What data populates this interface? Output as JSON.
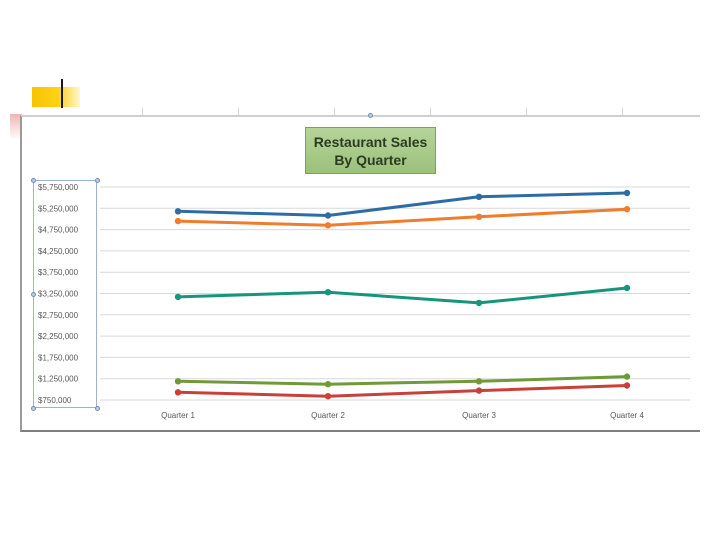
{
  "chart_data": {
    "type": "line",
    "title": "Restaurant Sales By Quarter",
    "title_lines": [
      "Restaurant Sales",
      "By Quarter"
    ],
    "categories": [
      "Quarter 1",
      "Quarter 2",
      "Quarter 3",
      "Quarter 4"
    ],
    "y_ticks": [
      750000,
      1250000,
      1750000,
      2250000,
      2750000,
      3250000,
      3750000,
      4250000,
      4750000,
      5250000,
      5750000
    ],
    "y_tick_labels": [
      "$750,000",
      "$1,250,000",
      "$1,750,000",
      "$2,250,000",
      "$2,750,000",
      "$3,250,000",
      "$3,750,000",
      "$4,250,000",
      "$4,750,000",
      "$5,250,000",
      "$5,750,000"
    ],
    "ylim": [
      750000,
      5750000
    ],
    "grid": true,
    "legend": "none",
    "series": [
      {
        "color": "#2e6da4",
        "values": [
          5180000,
          5080000,
          5520000,
          5610000
        ]
      },
      {
        "color": "#ef7d2d",
        "values": [
          4950000,
          4850000,
          5050000,
          5230000
        ]
      },
      {
        "color": "#17947c",
        "values": [
          3170000,
          3280000,
          3030000,
          3380000
        ]
      },
      {
        "color": "#6f9a3a",
        "values": [
          1190000,
          1120000,
          1190000,
          1300000
        ]
      },
      {
        "color": "#c9403a",
        "values": [
          930000,
          840000,
          970000,
          1090000
        ]
      }
    ]
  }
}
